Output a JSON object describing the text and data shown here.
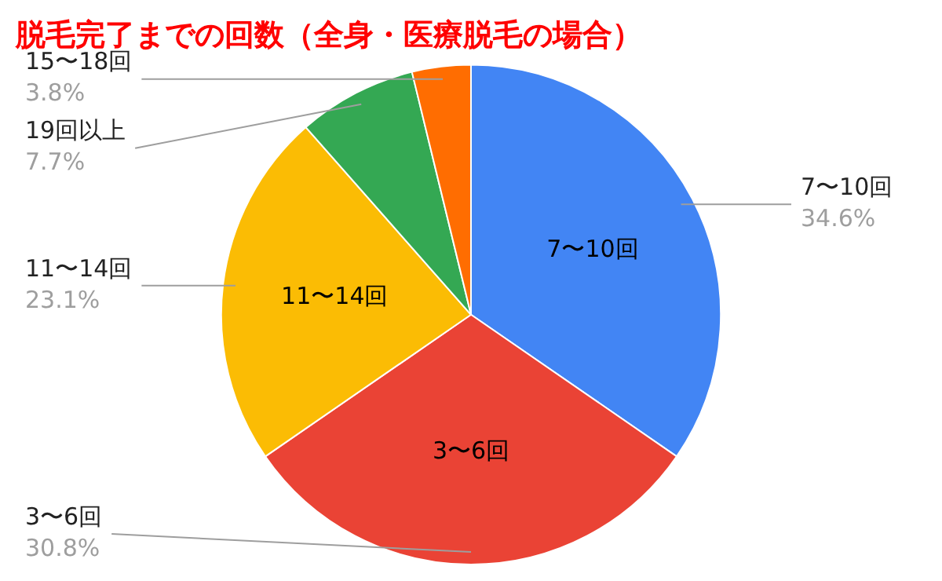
{
  "chart_data": {
    "type": "pie",
    "title": "脱毛完了までの回数（全身・医療脱毛の場合）",
    "categories": [
      "7〜10回",
      "3〜6回",
      "11〜14回",
      "19回以上",
      "15〜18回"
    ],
    "values": [
      34.6,
      30.8,
      23.1,
      7.7,
      3.8
    ],
    "value_labels": [
      "34.6%",
      "30.8%",
      "23.1%",
      "7.7%",
      "3.8%"
    ],
    "colors": [
      "#4285f4",
      "#ea4335",
      "#fbbc04",
      "#34a853",
      "#ff6d01"
    ],
    "legend": false
  }
}
